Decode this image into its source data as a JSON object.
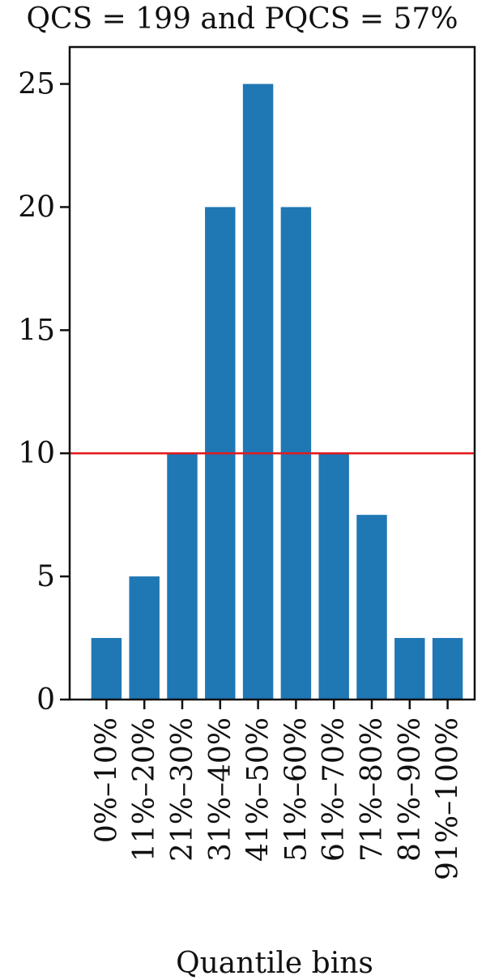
{
  "chart_data": {
    "type": "bar",
    "title": "QCS = 199 and PQCS = 57%",
    "xlabel": "Quantile bins",
    "ylabel": "",
    "categories": [
      "0%–10%",
      "11%–20%",
      "21%–30%",
      "31%–40%",
      "41%–50%",
      "51%–60%",
      "61%–70%",
      "71%–80%",
      "81%–90%",
      "91%–100%"
    ],
    "values": [
      2.5,
      5,
      10,
      20,
      25,
      20,
      10,
      7.5,
      2.5,
      2.5
    ],
    "ylim": [
      0,
      26.5
    ],
    "yticks": [
      0,
      5,
      10,
      15,
      20,
      25
    ],
    "reference_line": {
      "y": 10,
      "color": "#e31a1c"
    },
    "bar_color": "#1f77b4",
    "grid": false,
    "legend": "none"
  }
}
